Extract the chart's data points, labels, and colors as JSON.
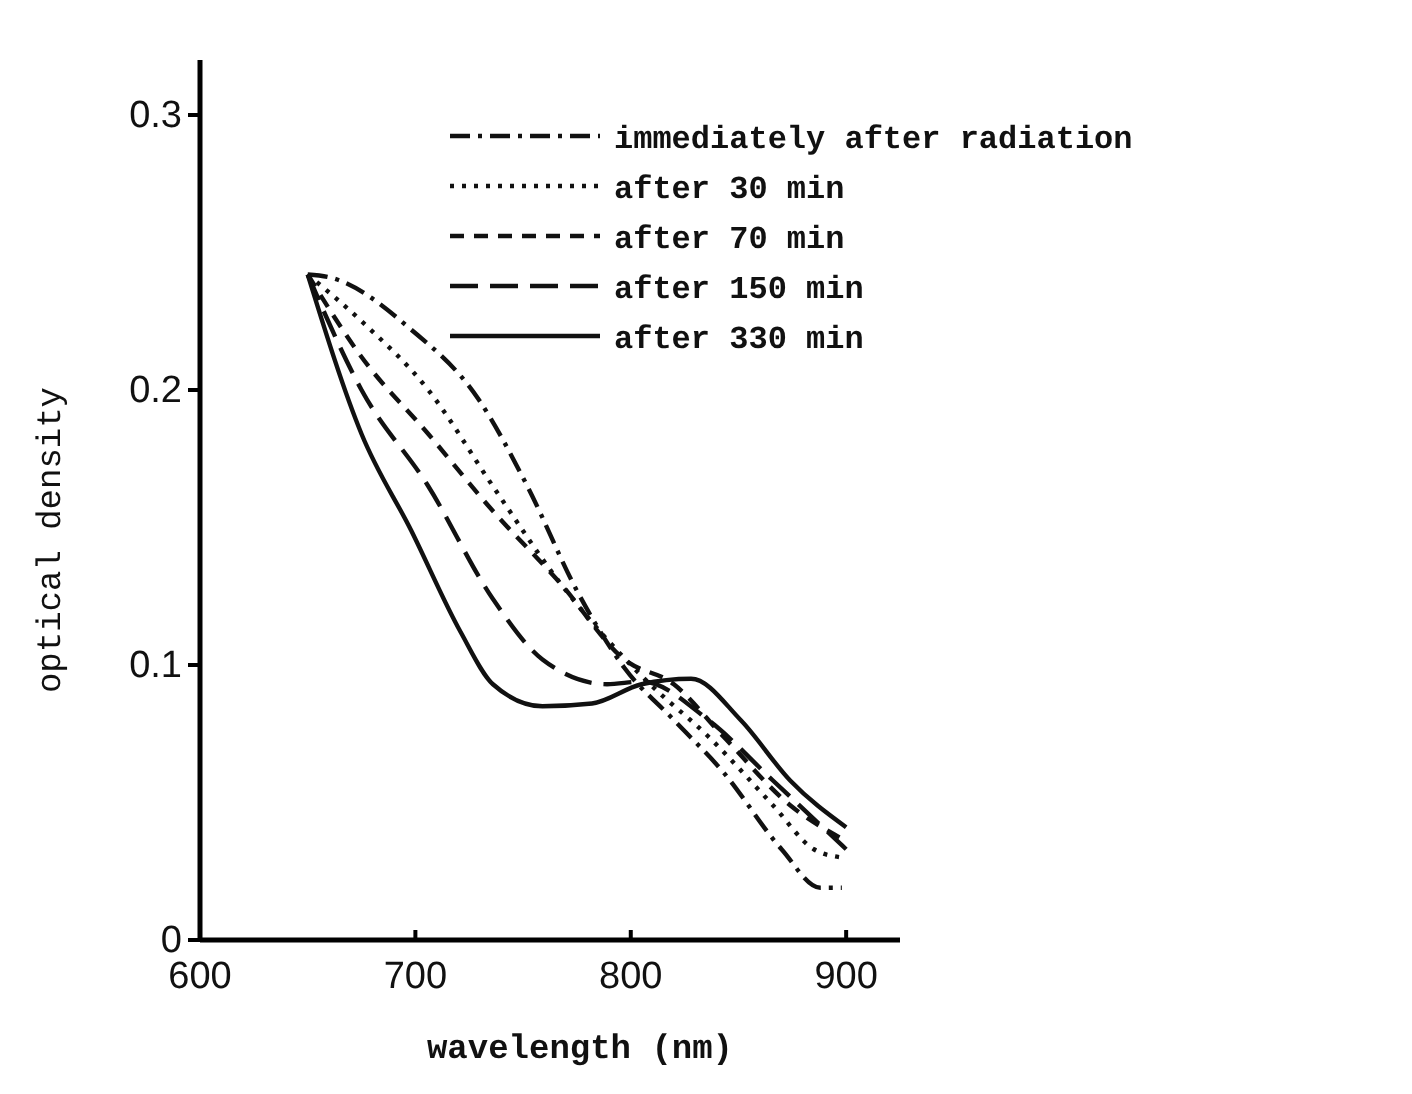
{
  "chart_data": {
    "type": "line",
    "xlabel": "wavelength (nm)",
    "ylabel": "optical density",
    "xlim": [
      600,
      925
    ],
    "ylim": [
      0,
      0.32
    ],
    "xticks": [
      600,
      700,
      800,
      900
    ],
    "yticks": [
      0,
      0.1,
      0.2,
      0.3
    ],
    "grid": false,
    "legend": "top right",
    "marker": "none",
    "series": [
      {
        "name": "immediately after radiation",
        "color": "#111111",
        "line_style": "dashdot",
        "x": [
          650,
          660,
          698,
          729,
          752,
          775,
          797,
          820,
          843,
          870,
          888,
          898
        ],
        "values": [
          0.242,
          0.241,
          0.222,
          0.197,
          0.165,
          0.127,
          0.099,
          0.08,
          0.061,
          0.033,
          0.019,
          0.019
        ]
      },
      {
        "name": "after 30 min",
        "color": "#111111",
        "line_style": "dotted",
        "x": [
          650,
          675,
          706,
          736,
          767,
          794,
          809,
          836,
          866,
          885,
          898
        ],
        "values": [
          0.242,
          0.225,
          0.2,
          0.165,
          0.13,
          0.105,
          0.093,
          0.074,
          0.049,
          0.033,
          0.03
        ]
      },
      {
        "name": "after 70 min",
        "color": "#111111",
        "line_style": "dashed",
        "x": [
          650,
          675,
          706,
          736,
          767,
          797,
          820,
          843,
          874,
          900
        ],
        "values": [
          0.242,
          0.212,
          0.184,
          0.156,
          0.13,
          0.102,
          0.093,
          0.074,
          0.049,
          0.036
        ]
      },
      {
        "name": "after 150 min",
        "color": "#111111",
        "line_style": "longdash",
        "x": [
          650,
          675,
          706,
          736,
          759,
          789,
          805,
          836,
          866,
          900
        ],
        "values": [
          0.242,
          0.2,
          0.165,
          0.124,
          0.102,
          0.093,
          0.094,
          0.08,
          0.058,
          0.033
        ]
      },
      {
        "name": "after 330 min",
        "color": "#111111",
        "line_style": "solid",
        "x": [
          650,
          675,
          698,
          721,
          736,
          759,
          782,
          805,
          828,
          851,
          874,
          900
        ],
        "values": [
          0.242,
          0.184,
          0.149,
          0.112,
          0.093,
          0.085,
          0.086,
          0.093,
          0.095,
          0.08,
          0.058,
          0.041
        ]
      }
    ]
  }
}
